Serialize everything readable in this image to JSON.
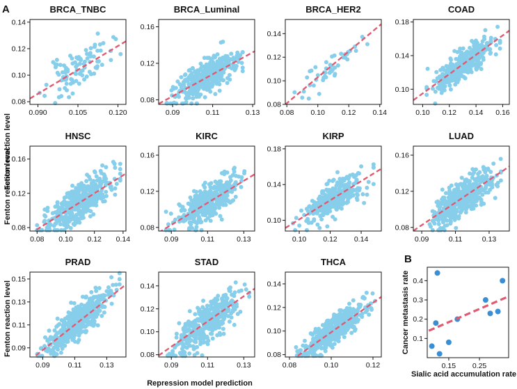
{
  "figure": {
    "panel_label_a": "A",
    "panel_label_b": "B",
    "shared_xlabel": "Repression model prediction",
    "shared_ylabel": "Fenton reaction level",
    "colors": {
      "point": "#87CEEB",
      "point_b": "#3A8FD4",
      "fit": "#E05A72",
      "axis": "#111111"
    }
  },
  "chart_data": [
    {
      "type": "scatter",
      "title": "BRCA_TNBC",
      "n": 95,
      "seed": 11,
      "noise": 0.0075,
      "slope": 1.2,
      "intercept": -0.022,
      "xlim": [
        0.087,
        0.123
      ],
      "ylim": [
        0.078,
        0.142
      ],
      "x_range": [
        0.089,
        0.121
      ],
      "xticks": [
        0.09,
        0.105,
        0.12
      ],
      "xtick_labels": [
        "0.090",
        "0.105",
        "0.120"
      ],
      "yticks": [
        0.08,
        0.1,
        0.12,
        0.14
      ],
      "ytick_labels": [
        "0.08",
        "0.10",
        "0.12",
        "0.14"
      ]
    },
    {
      "type": "scatter",
      "title": "BRCA_Luminal",
      "n": 420,
      "seed": 23,
      "noise": 0.009,
      "slope": 1.2,
      "intercept": -0.024,
      "xlim": [
        0.083,
        0.131
      ],
      "ylim": [
        0.075,
        0.168
      ],
      "x_range": [
        0.087,
        0.125
      ],
      "xticks": [
        0.09,
        0.11,
        0.13
      ],
      "xtick_labels": [
        "0.09",
        "0.11",
        "0.13"
      ],
      "yticks": [
        0.08,
        0.12,
        0.16
      ],
      "ytick_labels": [
        "0.08",
        "0.12",
        "0.16"
      ]
    },
    {
      "type": "scatter",
      "title": "BRCA_HER2",
      "n": 45,
      "seed": 37,
      "noise": 0.006,
      "slope": 1.1,
      "intercept": -0.007,
      "xlim": [
        0.079,
        0.141
      ],
      "ylim": [
        0.08,
        0.152
      ],
      "x_range": [
        0.085,
        0.132
      ],
      "xticks": [
        0.08,
        0.1,
        0.12,
        0.14
      ],
      "xtick_labels": [
        "0.08",
        "0.10",
        "0.12",
        "0.14"
      ],
      "yticks": [
        0.08,
        0.1,
        0.12,
        0.14
      ],
      "ytick_labels": [
        "0.08",
        "0.10",
        "0.12",
        "0.14"
      ]
    },
    {
      "type": "scatter",
      "title": "COAD",
      "n": 380,
      "seed": 41,
      "noise": 0.009,
      "slope": 1.15,
      "intercept": -0.02,
      "xlim": [
        0.093,
        0.165
      ],
      "ylim": [
        0.082,
        0.183
      ],
      "x_range": [
        0.103,
        0.158
      ],
      "xticks": [
        0.1,
        0.12,
        0.14,
        0.16
      ],
      "xtick_labels": [
        "0.10",
        "0.12",
        "0.14",
        "0.16"
      ],
      "yticks": [
        0.1,
        0.14,
        0.18
      ],
      "ytick_labels": [
        "0.10",
        "0.14",
        "0.18"
      ]
    },
    {
      "type": "scatter",
      "title": "HNSC",
      "n": 420,
      "seed": 53,
      "noise": 0.011,
      "slope": 1.05,
      "intercept": -0.006,
      "xlim": [
        0.075,
        0.142
      ],
      "ylim": [
        0.076,
        0.175
      ],
      "x_range": [
        0.08,
        0.138
      ],
      "xticks": [
        0.08,
        0.1,
        0.12,
        0.14
      ],
      "xtick_labels": [
        "0.08",
        "0.10",
        "0.12",
        "0.14"
      ],
      "yticks": [
        0.08,
        0.12,
        0.16
      ],
      "ytick_labels": [
        "0.08",
        "0.12",
        "0.16"
      ]
    },
    {
      "type": "scatter",
      "title": "KIRC",
      "n": 420,
      "seed": 61,
      "noise": 0.009,
      "slope": 1.22,
      "intercept": -0.027,
      "xlim": [
        0.083,
        0.136
      ],
      "ylim": [
        0.076,
        0.17
      ],
      "x_range": [
        0.087,
        0.132
      ],
      "xticks": [
        0.09,
        0.11,
        0.13
      ],
      "xtick_labels": [
        "0.09",
        "0.11",
        "0.13"
      ],
      "yticks": [
        0.08,
        0.12,
        0.16
      ],
      "ytick_labels": [
        "0.08",
        "0.12",
        "0.16"
      ]
    },
    {
      "type": "scatter",
      "title": "KIRP",
      "n": 300,
      "seed": 71,
      "noise": 0.009,
      "slope": 1.07,
      "intercept": -0.006,
      "xlim": [
        0.091,
        0.153
      ],
      "ylim": [
        0.088,
        0.183
      ],
      "x_range": [
        0.096,
        0.148
      ],
      "xticks": [
        0.1,
        0.12,
        0.14
      ],
      "xtick_labels": [
        "0.10",
        "0.12",
        "0.14"
      ],
      "yticks": [
        0.1,
        0.14,
        0.18
      ],
      "ytick_labels": [
        "0.10",
        "0.14",
        "0.18"
      ]
    },
    {
      "type": "scatter",
      "title": "LUAD",
      "n": 520,
      "seed": 83,
      "noise": 0.01,
      "slope": 1.25,
      "intercept": -0.03,
      "xlim": [
        0.085,
        0.142
      ],
      "ylim": [
        0.076,
        0.17
      ],
      "x_range": [
        0.09,
        0.137
      ],
      "xticks": [
        0.09,
        0.11,
        0.13
      ],
      "xtick_labels": [
        "0.09",
        "0.11",
        "0.13"
      ],
      "yticks": [
        0.08,
        0.12,
        0.16
      ],
      "ytick_labels": [
        "0.08",
        "0.12",
        "0.16"
      ]
    },
    {
      "type": "scatter",
      "title": "PRAD",
      "n": 480,
      "seed": 97,
      "noise": 0.007,
      "slope": 1.1,
      "intercept": -0.011,
      "xlim": [
        0.082,
        0.142
      ],
      "ylim": [
        0.082,
        0.156
      ],
      "x_range": [
        0.086,
        0.138
      ],
      "xticks": [
        0.09,
        0.11,
        0.13
      ],
      "xtick_labels": [
        "0.09",
        "0.11",
        "0.13"
      ],
      "yticks": [
        0.09,
        0.11,
        0.13,
        0.15
      ],
      "ytick_labels": [
        "0.09",
        "0.11",
        "0.13",
        "0.15"
      ]
    },
    {
      "type": "scatter",
      "title": "STAD",
      "n": 400,
      "seed": 101,
      "noise": 0.009,
      "slope": 1.1,
      "intercept": -0.012,
      "xlim": [
        0.083,
        0.136
      ],
      "ylim": [
        0.078,
        0.152
      ],
      "x_range": [
        0.088,
        0.133
      ],
      "xticks": [
        0.09,
        0.11,
        0.13
      ],
      "xtick_labels": [
        "0.09",
        "0.11",
        "0.13"
      ],
      "yticks": [
        0.08,
        0.1,
        0.12,
        0.14
      ],
      "ytick_labels": [
        "0.08",
        "0.10",
        "0.12",
        "0.14"
      ]
    },
    {
      "type": "scatter",
      "title": "THCA",
      "n": 500,
      "seed": 113,
      "noise": 0.006,
      "slope": 1.25,
      "intercept": -0.026,
      "xlim": [
        0.078,
        0.124
      ],
      "ylim": [
        0.078,
        0.15
      ],
      "x_range": [
        0.082,
        0.121
      ],
      "xticks": [
        0.08,
        0.1,
        0.12
      ],
      "xtick_labels": [
        "0.08",
        "0.10",
        "0.12"
      ],
      "yticks": [
        0.08,
        0.1,
        0.12,
        0.14
      ],
      "ytick_labels": [
        "0.08",
        "0.10",
        "0.12",
        "0.14"
      ]
    },
    {
      "type": "scatter",
      "title": "",
      "panel": "B",
      "xlabel": "Sialic acid accumulation rate",
      "ylabel": "Cancer metastasis rate",
      "xlim": [
        0.08,
        0.345
      ],
      "ylim": [
        0.0,
        0.47
      ],
      "xticks": [
        0.15,
        0.25
      ],
      "xtick_labels": [
        "0.15",
        "0.25"
      ],
      "yticks": [
        0.1,
        0.2,
        0.3,
        0.4
      ],
      "ytick_labels": [
        "0.1",
        "0.2",
        "0.3",
        "0.4"
      ],
      "points": [
        [
          0.095,
          0.06
        ],
        [
          0.108,
          0.18
        ],
        [
          0.113,
          0.44
        ],
        [
          0.12,
          0.02
        ],
        [
          0.15,
          0.08
        ],
        [
          0.178,
          0.2
        ],
        [
          0.27,
          0.3
        ],
        [
          0.285,
          0.23
        ],
        [
          0.31,
          0.24
        ],
        [
          0.325,
          0.4
        ]
      ],
      "fit": [
        [
          0.085,
          0.14
        ],
        [
          0.34,
          0.315
        ]
      ]
    }
  ]
}
